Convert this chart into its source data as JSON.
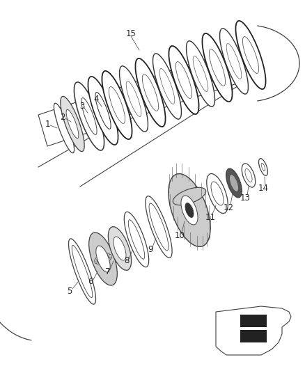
{
  "background_color": "#ffffff",
  "line_color": "#404040",
  "label_color": "#222222",
  "fig_width": 4.38,
  "fig_height": 5.33,
  "dpi": 100
}
